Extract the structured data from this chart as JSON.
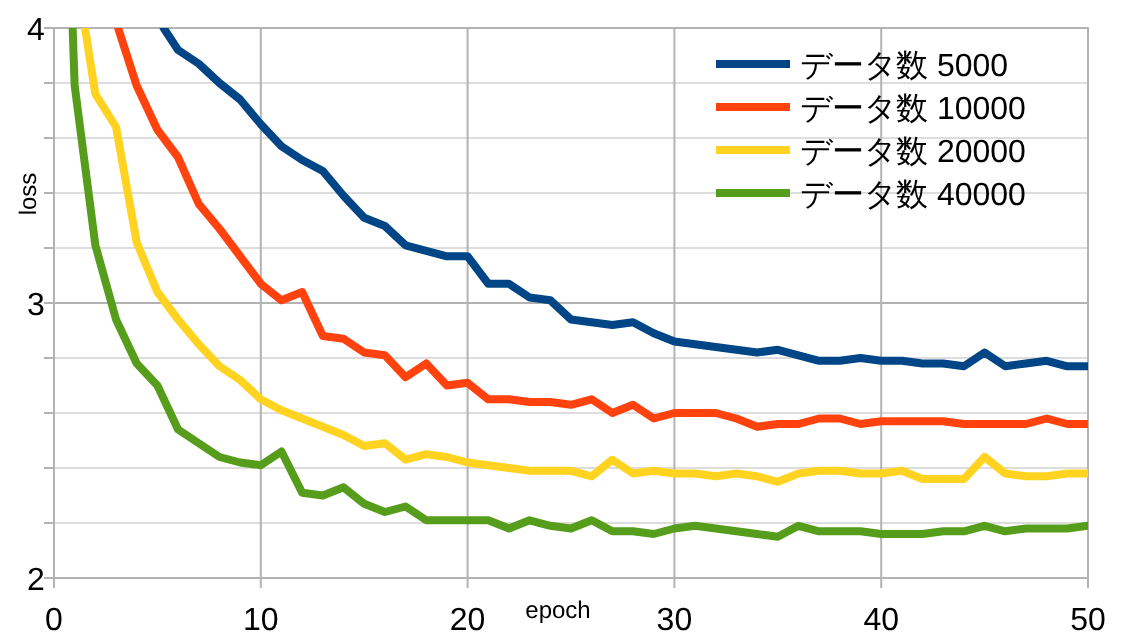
{
  "chart_data": {
    "type": "line",
    "xlabel": "epoch",
    "ylabel": "loss",
    "xlim": [
      0,
      50
    ],
    "xticks": [
      0,
      10,
      20,
      30,
      40,
      50
    ],
    "ylim": [
      2,
      4
    ],
    "yticks": [
      2,
      {
        "value": 2.2,
        "label": null
      },
      {
        "value": 2.4,
        "label": null
      },
      {
        "value": 2.6,
        "label": null
      },
      {
        "value": 2.8,
        "label": null
      },
      3,
      {
        "value": 3.2,
        "label": null
      },
      {
        "value": 3.4,
        "label": null
      },
      {
        "value": 3.6,
        "label": null
      },
      {
        "value": 3.8,
        "label": null
      },
      4
    ],
    "grid": true,
    "legend": "top right",
    "line_style": "solid",
    "series": [
      {
        "name": "データ数 5000",
        "color": "#004586",
        "x": [
          5.3,
          6,
          7,
          8,
          9,
          10,
          11,
          12,
          13,
          14,
          15,
          16,
          17,
          18,
          19,
          20,
          21,
          22,
          23,
          24,
          25,
          26,
          27,
          28,
          29,
          30,
          31,
          32,
          33,
          34,
          35,
          36,
          37,
          38,
          39,
          40,
          41,
          42,
          43,
          44,
          45,
          46,
          47,
          48,
          49,
          50
        ],
        "values": [
          4,
          3.92,
          3.87,
          3.8,
          3.74,
          3.65,
          3.57,
          3.52,
          3.48,
          3.39,
          3.31,
          3.28,
          3.21,
          3.19,
          3.17,
          3.17,
          3.07,
          3.07,
          3.02,
          3.01,
          2.94,
          2.93,
          2.92,
          2.93,
          2.89,
          2.86,
          2.85,
          2.84,
          2.83,
          2.82,
          2.83,
          2.81,
          2.79,
          2.79,
          2.8,
          2.79,
          2.79,
          2.78,
          2.78,
          2.77,
          2.82,
          2.77,
          2.78,
          2.79,
          2.77,
          2.77
        ]
      },
      {
        "name": "データ数 10000",
        "color": "#ff420e",
        "x": [
          3.1,
          4,
          5,
          6,
          7,
          8,
          9,
          10,
          11,
          12,
          13,
          14,
          15,
          16,
          17,
          18,
          19,
          20,
          21,
          22,
          23,
          24,
          25,
          26,
          27,
          28,
          29,
          30,
          31,
          32,
          33,
          34,
          35,
          36,
          37,
          38,
          39,
          40,
          41,
          42,
          43,
          44,
          45,
          46,
          47,
          48,
          49,
          50
        ],
        "values": [
          4,
          3.79,
          3.63,
          3.53,
          3.36,
          3.27,
          3.17,
          3.07,
          3.01,
          3.04,
          2.88,
          2.87,
          2.82,
          2.81,
          2.73,
          2.78,
          2.7,
          2.71,
          2.65,
          2.65,
          2.64,
          2.64,
          2.63,
          2.65,
          2.6,
          2.63,
          2.58,
          2.6,
          2.6,
          2.6,
          2.58,
          2.55,
          2.56,
          2.56,
          2.58,
          2.58,
          2.56,
          2.57,
          2.57,
          2.57,
          2.57,
          2.56,
          2.56,
          2.56,
          2.56,
          2.58,
          2.56,
          2.56
        ]
      },
      {
        "name": "データ数 20000",
        "color": "#ffd320",
        "x": [
          1.5,
          2,
          3,
          4,
          5,
          6,
          7,
          8,
          9,
          10,
          11,
          12,
          13,
          14,
          15,
          16,
          17,
          18,
          19,
          20,
          21,
          22,
          23,
          24,
          25,
          26,
          27,
          28,
          29,
          30,
          31,
          32,
          33,
          34,
          35,
          36,
          37,
          38,
          39,
          40,
          41,
          42,
          43,
          44,
          45,
          46,
          47,
          48,
          49,
          50
        ],
        "values": [
          4,
          3.76,
          3.64,
          3.22,
          3.04,
          2.94,
          2.85,
          2.77,
          2.72,
          2.65,
          2.61,
          2.58,
          2.55,
          2.52,
          2.48,
          2.49,
          2.43,
          2.45,
          2.44,
          2.42,
          2.41,
          2.4,
          2.39,
          2.39,
          2.39,
          2.37,
          2.43,
          2.38,
          2.39,
          2.38,
          2.38,
          2.37,
          2.38,
          2.37,
          2.35,
          2.38,
          2.39,
          2.39,
          2.38,
          2.38,
          2.39,
          2.36,
          2.36,
          2.36,
          2.44,
          2.38,
          2.37,
          2.37,
          2.38,
          2.38
        ]
      },
      {
        "name": "データ数 40000",
        "color": "#579d1c",
        "x": [
          0.9,
          1,
          2,
          3,
          4,
          5,
          6,
          7,
          8,
          9,
          10,
          11,
          12,
          13,
          14,
          15,
          16,
          17,
          18,
          19,
          20,
          21,
          22,
          23,
          24,
          25,
          26,
          27,
          28,
          29,
          30,
          31,
          32,
          33,
          34,
          35,
          36,
          37,
          38,
          39,
          40,
          41,
          42,
          43,
          44,
          45,
          46,
          47,
          48,
          49,
          50
        ],
        "values": [
          4,
          3.79,
          3.21,
          2.94,
          2.78,
          2.7,
          2.54,
          2.49,
          2.44,
          2.42,
          2.41,
          2.46,
          2.31,
          2.3,
          2.33,
          2.27,
          2.24,
          2.26,
          2.21,
          2.21,
          2.21,
          2.21,
          2.18,
          2.21,
          2.19,
          2.18,
          2.21,
          2.17,
          2.17,
          2.16,
          2.18,
          2.19,
          2.18,
          2.17,
          2.16,
          2.15,
          2.19,
          2.17,
          2.17,
          2.17,
          2.16,
          2.16,
          2.16,
          2.17,
          2.17,
          2.19,
          2.17,
          2.18,
          2.18,
          2.18,
          2.19
        ]
      }
    ]
  }
}
